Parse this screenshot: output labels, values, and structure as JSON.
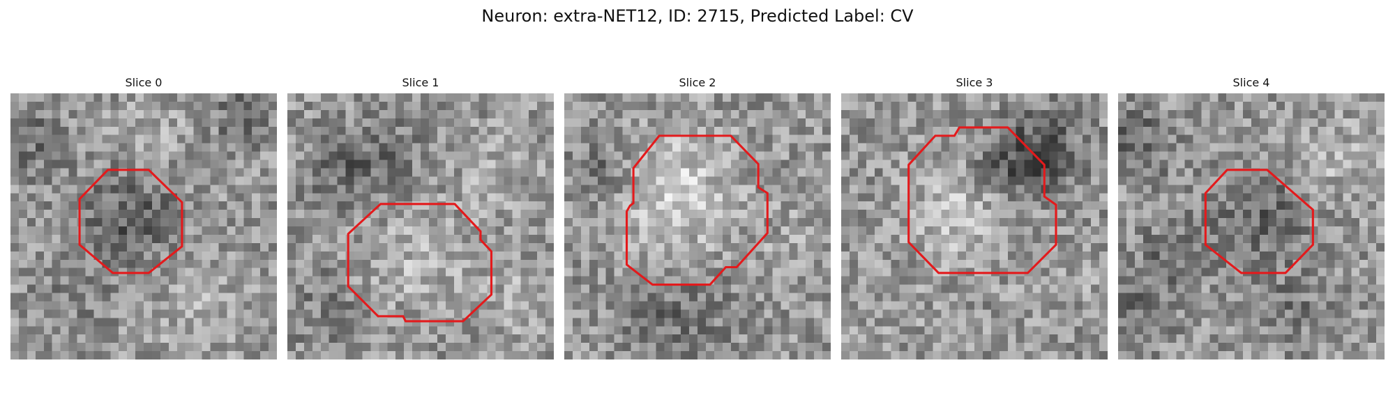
{
  "figure": {
    "title": "Neuron: extra-NET12, ID: 2715, Predicted Label: CV"
  },
  "colors": {
    "outline": "#e31a1c"
  },
  "slices": [
    {
      "label": "Slice 0"
    },
    {
      "label": "Slice 1"
    },
    {
      "label": "Slice 2"
    },
    {
      "label": "Slice 3"
    },
    {
      "label": "Slice 4"
    }
  ]
}
